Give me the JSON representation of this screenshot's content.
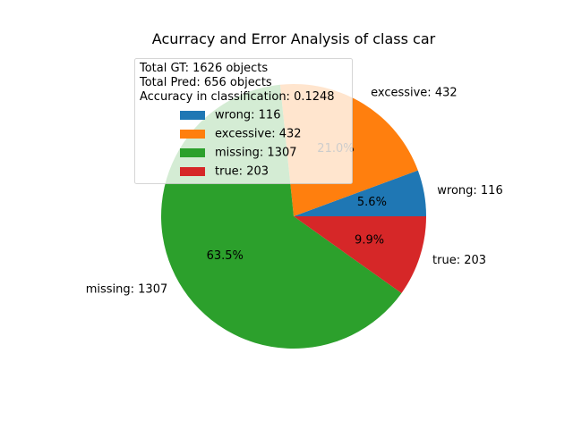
{
  "chart_data": {
    "type": "pie",
    "title": "Acurracy and Error Analysis of class car",
    "slices": [
      {
        "label": "wrong: 116",
        "value": 116,
        "percent_label": "5.6%",
        "color": "#1f77b4"
      },
      {
        "label": "excessive: 432",
        "value": 432,
        "percent_label": "21.0%",
        "color": "#ff7f0e"
      },
      {
        "label": "missing: 1307",
        "value": 1307,
        "percent_label": "63.5%",
        "color": "#2ca02c"
      },
      {
        "label": "true: 203",
        "value": 203,
        "percent_label": "9.9%",
        "color": "#d62728"
      }
    ],
    "legend": {
      "placement": "top-left",
      "header_lines": [
        "Total GT: 1626 objects",
        "Total Pred: 656 objects",
        "Accuracy in classification: 0.1248"
      ],
      "entries": [
        "wrong: 116",
        "excessive: 432",
        "missing: 1307",
        "true: 203"
      ]
    }
  }
}
